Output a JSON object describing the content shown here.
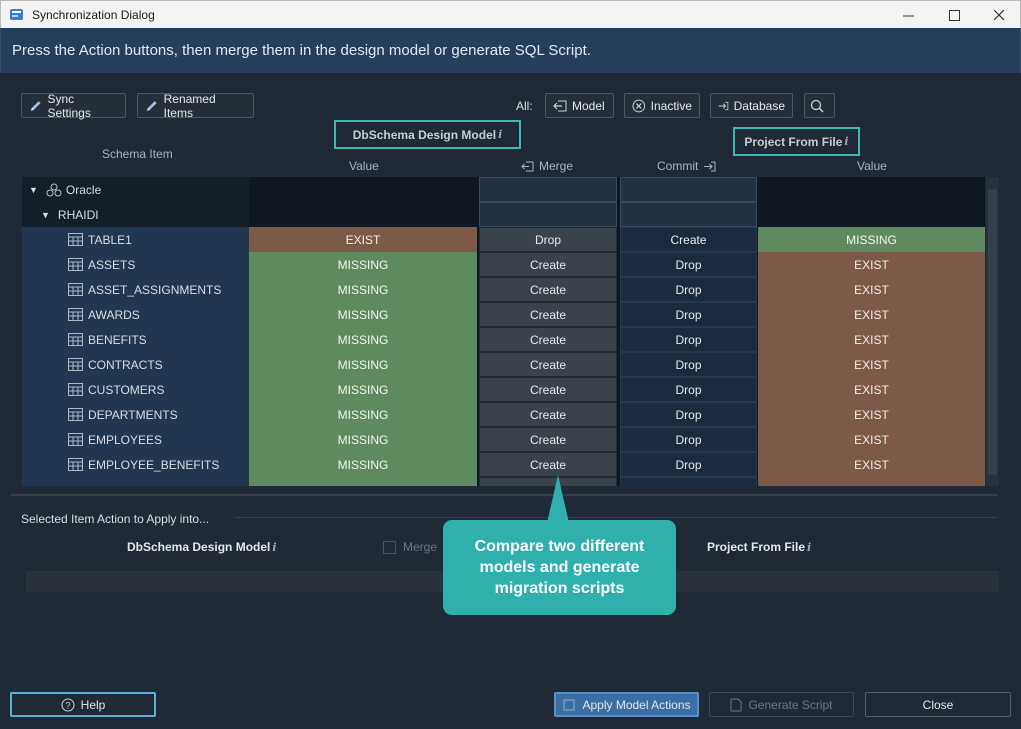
{
  "window": {
    "title": "Synchronization Dialog",
    "minimize": "—",
    "maximize": "☐",
    "close": "✕"
  },
  "banner": "Press the Action buttons, then merge them in the design model or generate SQL Script.",
  "toolbar": {
    "sync_settings": "Sync Settings",
    "renamed_items": "Renamed Items",
    "all_label": "All:",
    "model": "Model",
    "inactive": "Inactive",
    "database": "Database"
  },
  "headers": {
    "schema_item": "Schema Item",
    "left_source": "DbSchema Design Model",
    "right_source": "Project From File",
    "value_left": "Value",
    "merge": "Merge",
    "commit": "Commit",
    "value_right": "Value",
    "info": "i"
  },
  "tree": {
    "root": "Oracle",
    "schema": "RHAIDI"
  },
  "rows": [
    {
      "name": "TABLE1",
      "model": "EXIST",
      "merge": "Drop",
      "commit": "Create",
      "file": "MISSING"
    },
    {
      "name": "ASSETS",
      "model": "MISSING",
      "merge": "Create",
      "commit": "Drop",
      "file": "EXIST"
    },
    {
      "name": "ASSET_ASSIGNMENTS",
      "model": "MISSING",
      "merge": "Create",
      "commit": "Drop",
      "file": "EXIST"
    },
    {
      "name": "AWARDS",
      "model": "MISSING",
      "merge": "Create",
      "commit": "Drop",
      "file": "EXIST"
    },
    {
      "name": "BENEFITS",
      "model": "MISSING",
      "merge": "Create",
      "commit": "Drop",
      "file": "EXIST"
    },
    {
      "name": "CONTRACTS",
      "model": "MISSING",
      "merge": "Create",
      "commit": "Drop",
      "file": "EXIST"
    },
    {
      "name": "CUSTOMERS",
      "model": "MISSING",
      "merge": "Create",
      "commit": "Drop",
      "file": "EXIST"
    },
    {
      "name": "DEPARTMENTS",
      "model": "MISSING",
      "merge": "Create",
      "commit": "Drop",
      "file": "EXIST"
    },
    {
      "name": "EMPLOYEES",
      "model": "MISSING",
      "merge": "Create",
      "commit": "Drop",
      "file": "EXIST"
    },
    {
      "name": "EMPLOYEE_BENEFITS",
      "model": "MISSING",
      "merge": "Create",
      "commit": "Drop",
      "file": "EXIST"
    }
  ],
  "selected": {
    "title": "Selected Item Action to Apply into...",
    "left_source": "DbSchema Design Model",
    "merge_checkbox": "Merge",
    "right_source": "Project From File"
  },
  "callout": "Compare two different models and generate migration scripts",
  "footer": {
    "help": "Help",
    "apply": "Apply Model Actions",
    "generate": "Generate Script",
    "close": "Close"
  },
  "colors": {
    "exist": "#7d5a48",
    "missing": "#5f8a5f",
    "accent": "#2fb0ad",
    "banner": "#243e5c"
  }
}
